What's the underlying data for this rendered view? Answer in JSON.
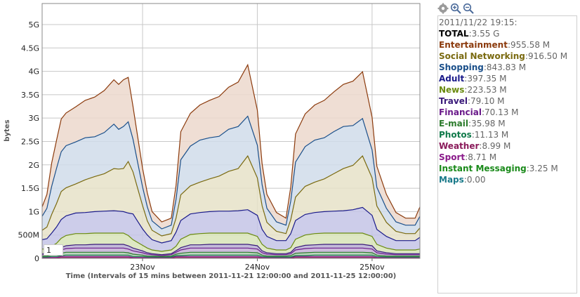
{
  "toolbar": {
    "icons": [
      "gear-icon",
      "zoom-in-icon",
      "zoom-out-icon"
    ]
  },
  "page_label": "1",
  "legend": {
    "timestamp": "2011/11/22 19:15:",
    "total": {
      "name": "TOTAL",
      "value": "3.55 G",
      "color": "#000000"
    },
    "items": [
      {
        "name": "Entertainment",
        "value": "955.58 M",
        "color": "#8b3a0c"
      },
      {
        "name": "Social Networking",
        "value": "916.50 M",
        "color": "#7a6a10"
      },
      {
        "name": "Shopping",
        "value": "843.83 M",
        "color": "#1a4f8a"
      },
      {
        "name": "Adult",
        "value": "397.35 M",
        "color": "#1a1a8a"
      },
      {
        "name": "News",
        "value": "223.53 M",
        "color": "#6a8a10"
      },
      {
        "name": "Travel",
        "value": "79.10 M",
        "color": "#3a1a7a"
      },
      {
        "name": "Financial",
        "value": "70.13 M",
        "color": "#6a1a8a"
      },
      {
        "name": "E-mail",
        "value": "35.98 M",
        "color": "#2a7a2a"
      },
      {
        "name": "Photos",
        "value": "11.13 M",
        "color": "#107a4a"
      },
      {
        "name": "Weather",
        "value": "8.99 M",
        "color": "#8a1a5a"
      },
      {
        "name": "Sport",
        "value": "8.71 M",
        "color": "#8a1a8a"
      },
      {
        "name": "Instant Messaging",
        "value": "3.25 M",
        "color": "#1a8a1a"
      },
      {
        "name": "Maps",
        "value": "0.00",
        "color": "#1a7a8a"
      }
    ]
  },
  "chart_data": {
    "type": "area",
    "stacked": true,
    "ylabel": "bytes",
    "xlabel": "Time (Intervals of 15 mins between 2011-11-21 12:00:00 and 2011-11-25 12:00:00)",
    "x_range": [
      "2011-11-22 03:00",
      "2011-11-25 10:00"
    ],
    "x_ticks": [
      {
        "label": "23Nov",
        "date": "2011-11-23 00:00"
      },
      {
        "label": "24Nov",
        "date": "2011-11-24 00:00"
      },
      {
        "label": "25Nov",
        "date": "2011-11-25 00:00"
      }
    ],
    "ylim": [
      0,
      5.45
    ],
    "y_unit": "G bytes",
    "y_ticks": [
      {
        "label": "0",
        "value": 0
      },
      {
        "label": "500M",
        "value": 0.5
      },
      {
        "label": "1G",
        "value": 1
      },
      {
        "label": "1.5G",
        "value": 1.5
      },
      {
        "label": "2G",
        "value": 2
      },
      {
        "label": "2.5G",
        "value": 2.5
      },
      {
        "label": "3G",
        "value": 3
      },
      {
        "label": "3.5G",
        "value": 3.5
      },
      {
        "label": "4G",
        "value": 4
      },
      {
        "label": "4.5G",
        "value": 4.5
      },
      {
        "label": "5G",
        "value": 5
      }
    ],
    "grid": true,
    "time": [
      "2011-11-22 03:00",
      "2011-11-22 04:00",
      "2011-11-22 05:00",
      "2011-11-22 06:00",
      "2011-11-22 07:00",
      "2011-11-22 08:00",
      "2011-11-22 10:00",
      "2011-11-22 12:00",
      "2011-11-22 14:00",
      "2011-11-22 16:00",
      "2011-11-22 18:00",
      "2011-11-22 19:00",
      "2011-11-22 20:00",
      "2011-11-22 21:00",
      "2011-11-22 22:00",
      "2011-11-22 23:00",
      "2011-11-23 00:00",
      "2011-11-23 01:00",
      "2011-11-23 02:00",
      "2011-11-23 04:00",
      "2011-11-23 06:00",
      "2011-11-23 07:00",
      "2011-11-23 08:00",
      "2011-11-23 10:00",
      "2011-11-23 12:00",
      "2011-11-23 14:00",
      "2011-11-23 16:00",
      "2011-11-23 18:00",
      "2011-11-23 20:00",
      "2011-11-23 22:00",
      "2011-11-24 00:00",
      "2011-11-24 01:00",
      "2011-11-24 02:00",
      "2011-11-24 04:00",
      "2011-11-24 06:00",
      "2011-11-24 07:00",
      "2011-11-24 08:00",
      "2011-11-24 10:00",
      "2011-11-24 12:00",
      "2011-11-24 14:00",
      "2011-11-24 16:00",
      "2011-11-24 18:00",
      "2011-11-24 20:00",
      "2011-11-24 22:00",
      "2011-11-25 00:00",
      "2011-11-25 01:00",
      "2011-11-25 03:00",
      "2011-11-25 05:00",
      "2011-11-25 07:00",
      "2011-11-25 09:00",
      "2011-11-25 10:00"
    ],
    "stack_order": [
      "Weather",
      "Sport",
      "Photos",
      "E-mail",
      "Financial",
      "Travel",
      "News",
      "Adult",
      "Social Networking",
      "Shopping",
      "Entertainment"
    ],
    "series": [
      {
        "name": "Weather",
        "color": "#8a1a5a",
        "fill": "#c9a8bd",
        "values": [
          0.01,
          0.01,
          0.01,
          0.01,
          0.02,
          0.02,
          0.02,
          0.02,
          0.02,
          0.02,
          0.02,
          0.02,
          0.02,
          0.02,
          0.01,
          0.01,
          0.01,
          0.01,
          0.01,
          0.01,
          0.01,
          0.02,
          0.02,
          0.02,
          0.02,
          0.02,
          0.02,
          0.02,
          0.02,
          0.02,
          0.02,
          0.01,
          0.01,
          0.01,
          0.01,
          0.01,
          0.02,
          0.02,
          0.02,
          0.02,
          0.02,
          0.02,
          0.02,
          0.02,
          0.02,
          0.01,
          0.01,
          0.01,
          0.01,
          0.01,
          0.01
        ]
      },
      {
        "name": "Sport",
        "color": "#8a1a8a",
        "fill": "#c9a8c9",
        "values": [
          0.01,
          0.01,
          0.01,
          0.01,
          0.02,
          0.02,
          0.02,
          0.02,
          0.02,
          0.02,
          0.02,
          0.02,
          0.02,
          0.02,
          0.01,
          0.01,
          0.01,
          0.01,
          0.01,
          0.01,
          0.01,
          0.02,
          0.02,
          0.02,
          0.02,
          0.02,
          0.02,
          0.02,
          0.02,
          0.02,
          0.02,
          0.01,
          0.01,
          0.01,
          0.01,
          0.01,
          0.02,
          0.02,
          0.02,
          0.02,
          0.02,
          0.02,
          0.02,
          0.02,
          0.02,
          0.01,
          0.01,
          0.01,
          0.01,
          0.01,
          0.01
        ]
      },
      {
        "name": "Photos",
        "color": "#107a4a",
        "fill": "#a8cbb9",
        "values": [
          0.01,
          0.01,
          0.02,
          0.02,
          0.02,
          0.03,
          0.03,
          0.03,
          0.03,
          0.03,
          0.03,
          0.03,
          0.03,
          0.03,
          0.02,
          0.02,
          0.02,
          0.01,
          0.01,
          0.01,
          0.01,
          0.02,
          0.02,
          0.03,
          0.03,
          0.03,
          0.03,
          0.03,
          0.03,
          0.03,
          0.03,
          0.02,
          0.01,
          0.01,
          0.01,
          0.01,
          0.02,
          0.02,
          0.03,
          0.03,
          0.03,
          0.03,
          0.03,
          0.03,
          0.03,
          0.02,
          0.01,
          0.01,
          0.01,
          0.01,
          0.01
        ]
      },
      {
        "name": "E-mail",
        "color": "#2a7a2a",
        "fill": "#b0cfb0",
        "values": [
          0.02,
          0.02,
          0.03,
          0.04,
          0.05,
          0.06,
          0.06,
          0.06,
          0.06,
          0.06,
          0.06,
          0.06,
          0.06,
          0.05,
          0.05,
          0.04,
          0.03,
          0.02,
          0.02,
          0.01,
          0.02,
          0.03,
          0.05,
          0.06,
          0.06,
          0.06,
          0.06,
          0.06,
          0.06,
          0.06,
          0.05,
          0.03,
          0.02,
          0.02,
          0.02,
          0.03,
          0.05,
          0.06,
          0.06,
          0.06,
          0.06,
          0.06,
          0.06,
          0.06,
          0.05,
          0.03,
          0.02,
          0.02,
          0.02,
          0.02,
          0.02
        ]
      },
      {
        "name": "Financial",
        "color": "#6a1a8a",
        "fill": "#c4b0d6",
        "values": [
          0.03,
          0.03,
          0.04,
          0.05,
          0.07,
          0.08,
          0.09,
          0.09,
          0.09,
          0.09,
          0.09,
          0.09,
          0.09,
          0.08,
          0.07,
          0.06,
          0.05,
          0.04,
          0.03,
          0.02,
          0.03,
          0.04,
          0.07,
          0.09,
          0.09,
          0.09,
          0.09,
          0.09,
          0.09,
          0.09,
          0.08,
          0.05,
          0.04,
          0.03,
          0.03,
          0.04,
          0.07,
          0.09,
          0.09,
          0.09,
          0.09,
          0.09,
          0.09,
          0.09,
          0.08,
          0.05,
          0.04,
          0.03,
          0.03,
          0.03,
          0.03
        ]
      },
      {
        "name": "Travel",
        "color": "#3a1a7a",
        "fill": "#b8b0d4",
        "values": [
          0.02,
          0.02,
          0.03,
          0.04,
          0.05,
          0.06,
          0.07,
          0.07,
          0.08,
          0.08,
          0.08,
          0.08,
          0.08,
          0.07,
          0.06,
          0.05,
          0.04,
          0.03,
          0.02,
          0.02,
          0.02,
          0.03,
          0.05,
          0.07,
          0.07,
          0.08,
          0.08,
          0.08,
          0.08,
          0.08,
          0.07,
          0.04,
          0.03,
          0.02,
          0.02,
          0.03,
          0.05,
          0.07,
          0.07,
          0.08,
          0.08,
          0.08,
          0.08,
          0.08,
          0.07,
          0.04,
          0.03,
          0.02,
          0.02,
          0.02,
          0.02
        ]
      },
      {
        "name": "News",
        "color": "#6a8a10",
        "fill": "#d8e4b8",
        "values": [
          0.1,
          0.1,
          0.12,
          0.15,
          0.2,
          0.22,
          0.24,
          0.24,
          0.24,
          0.24,
          0.24,
          0.24,
          0.24,
          0.22,
          0.18,
          0.15,
          0.12,
          0.1,
          0.08,
          0.07,
          0.08,
          0.1,
          0.18,
          0.22,
          0.24,
          0.24,
          0.24,
          0.24,
          0.24,
          0.24,
          0.2,
          0.14,
          0.1,
          0.08,
          0.08,
          0.1,
          0.18,
          0.22,
          0.24,
          0.24,
          0.24,
          0.24,
          0.24,
          0.24,
          0.2,
          0.14,
          0.1,
          0.08,
          0.08,
          0.08,
          0.1
        ]
      },
      {
        "name": "Adult",
        "color": "#1a1a8a",
        "fill": "#c4c4e6",
        "values": [
          0.2,
          0.22,
          0.28,
          0.35,
          0.4,
          0.42,
          0.44,
          0.45,
          0.46,
          0.47,
          0.48,
          0.47,
          0.46,
          0.48,
          0.55,
          0.45,
          0.35,
          0.28,
          0.22,
          0.18,
          0.2,
          0.3,
          0.4,
          0.44,
          0.45,
          0.46,
          0.47,
          0.47,
          0.48,
          0.5,
          0.45,
          0.32,
          0.25,
          0.2,
          0.2,
          0.3,
          0.4,
          0.44,
          0.45,
          0.46,
          0.47,
          0.48,
          0.5,
          0.55,
          0.45,
          0.32,
          0.25,
          0.2,
          0.2,
          0.2,
          0.25
        ]
      },
      {
        "name": "Social Networking",
        "color": "#7a6a10",
        "fill": "#e6e2c8",
        "values": [
          0.2,
          0.25,
          0.4,
          0.5,
          0.6,
          0.6,
          0.62,
          0.7,
          0.75,
          0.8,
          0.9,
          0.9,
          0.92,
          1.1,
          0.9,
          0.7,
          0.5,
          0.3,
          0.2,
          0.15,
          0.15,
          0.3,
          0.55,
          0.6,
          0.65,
          0.7,
          0.75,
          0.85,
          0.9,
          1.15,
          0.8,
          0.5,
          0.3,
          0.2,
          0.15,
          0.3,
          0.5,
          0.6,
          0.65,
          0.7,
          0.8,
          0.9,
          0.95,
          1.1,
          0.8,
          0.5,
          0.3,
          0.2,
          0.15,
          0.15,
          0.2
        ]
      },
      {
        "name": "Shopping",
        "color": "#1a4f8a",
        "fill": "#d0dcea",
        "values": [
          0.3,
          0.4,
          0.6,
          0.75,
          0.85,
          0.9,
          0.9,
          0.9,
          0.85,
          0.88,
          0.95,
          0.85,
          0.9,
          0.85,
          0.7,
          0.55,
          0.4,
          0.3,
          0.2,
          0.15,
          0.18,
          0.4,
          0.75,
          0.85,
          0.9,
          0.88,
          0.85,
          0.9,
          0.9,
          0.85,
          0.7,
          0.45,
          0.3,
          0.2,
          0.18,
          0.4,
          0.75,
          0.85,
          0.9,
          0.88,
          0.9,
          0.9,
          0.85,
          0.8,
          0.6,
          0.4,
          0.3,
          0.2,
          0.18,
          0.18,
          0.25
        ]
      },
      {
        "name": "Entertainment",
        "color": "#8b3a0c",
        "fill": "#ecd8cc",
        "values": [
          0.2,
          0.3,
          0.5,
          0.6,
          0.7,
          0.7,
          0.75,
          0.8,
          0.85,
          0.9,
          0.95,
          0.96,
          1.0,
          0.95,
          0.7,
          0.55,
          0.4,
          0.3,
          0.2,
          0.15,
          0.15,
          0.3,
          0.6,
          0.7,
          0.75,
          0.8,
          0.85,
          0.9,
          0.95,
          1.1,
          0.75,
          0.45,
          0.3,
          0.2,
          0.15,
          0.3,
          0.6,
          0.7,
          0.75,
          0.8,
          0.85,
          0.9,
          0.95,
          1.0,
          0.7,
          0.45,
          0.3,
          0.2,
          0.15,
          0.15,
          0.2
        ]
      }
    ]
  }
}
